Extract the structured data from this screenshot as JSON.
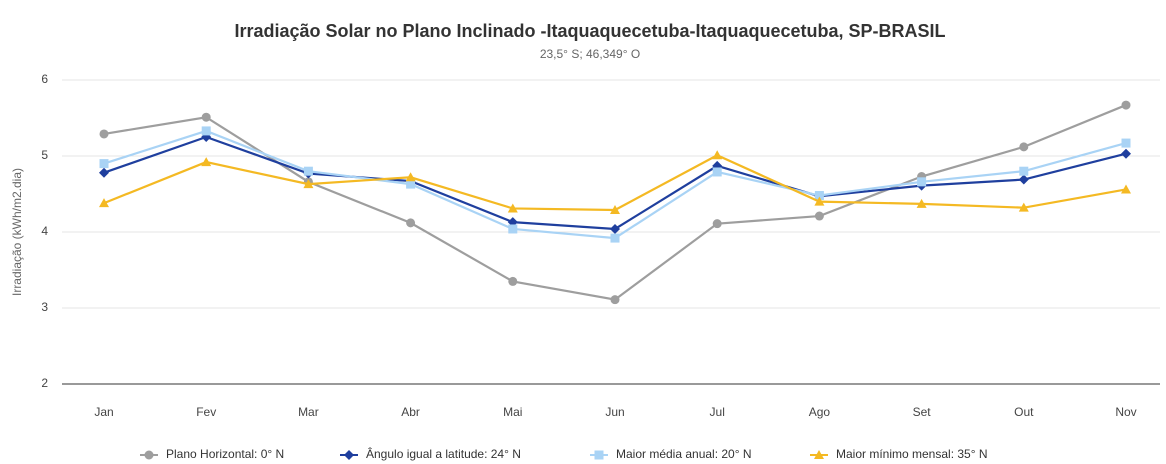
{
  "chart_data": {
    "type": "line",
    "title": "Irradiação Solar no Plano Inclinado -Itaquaquecetuba-Itaquaquecetuba, SP-BRASIL",
    "subtitle": "23,5° S; 46,349° O",
    "y_label": "Irradiação (kWh/m2.dia)",
    "categories": [
      "Jan",
      "Fev",
      "Mar",
      "Abr",
      "Mai",
      "Jun",
      "Jul",
      "Ago",
      "Set",
      "Out",
      "Nov"
    ],
    "series": [
      {
        "name": "Plano Horizontal: 0° N",
        "color": "#9e9e9e",
        "marker": "circle",
        "values": [
          5.29,
          5.51,
          4.66,
          4.12,
          3.35,
          3.11,
          4.11,
          4.21,
          4.73,
          5.12,
          5.67
        ]
      },
      {
        "name": "Ângulo igual a latitude: 24° N",
        "color": "#1f3f9e",
        "marker": "diamond",
        "values": [
          4.78,
          5.25,
          4.77,
          4.67,
          4.13,
          4.04,
          4.87,
          4.47,
          4.61,
          4.69,
          5.03
        ]
      },
      {
        "name": "Maior média anual: 20° N",
        "color": "#a9d3f5",
        "marker": "square",
        "values": [
          4.9,
          5.33,
          4.8,
          4.63,
          4.04,
          3.92,
          4.79,
          4.48,
          4.66,
          4.8,
          5.17
        ]
      },
      {
        "name": "Maior mínimo mensal: 35° N",
        "color": "#f4b923",
        "marker": "triangle",
        "values": [
          4.38,
          4.92,
          4.63,
          4.72,
          4.31,
          4.29,
          5.01,
          4.4,
          4.37,
          4.32,
          4.56
        ]
      }
    ],
    "ylim": [
      2,
      6
    ],
    "yticks": [
      2,
      3,
      4,
      5,
      6
    ],
    "grid": true,
    "legend": "bottom"
  }
}
